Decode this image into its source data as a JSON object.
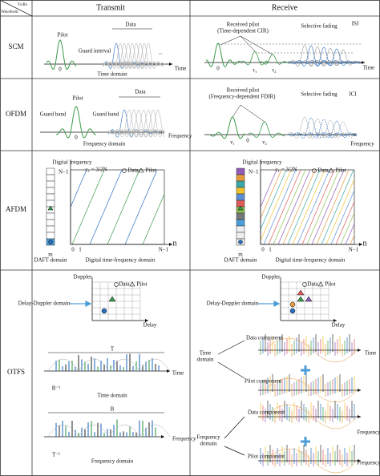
{
  "header": {
    "corner_top": "Tx/Rx",
    "corner_bottom": "Waveform",
    "transmit": "Transmit",
    "receive": "Receive"
  },
  "rows": [
    {
      "name": "SCM",
      "transmit": {
        "pilot": "Pilot",
        "data": "Data",
        "guard": "Guard interval",
        "zero": "0",
        "ellipsis": "...",
        "axis": "Time",
        "domain": "Time domain"
      },
      "receive": {
        "pilot": "Received pilot",
        "pilot_note": "(Time-dependent CIR)",
        "fading": "Selective fading",
        "interference": "ISI",
        "zero": "0",
        "tau1": "τ₁",
        "tau2": "τ₂",
        "axis": "Time"
      }
    },
    {
      "name": "OFDM",
      "transmit": {
        "pilot": "Pilot",
        "guard_left": "Guard band",
        "guard_right": "Guard band",
        "data": "Data",
        "zero": "0",
        "axis": "Frequency",
        "domain": "Frequency domain"
      },
      "receive": {
        "pilot": "Received pilot",
        "pilot_note": "(Frequency-dependent FDIR)",
        "fading": "Selective fading",
        "interference": "ICI",
        "zero": "0",
        "nu1": "ν₁",
        "nu2": "ν₂",
        "axis": "Frequency"
      }
    },
    {
      "name": "AFDM",
      "transmit": {
        "y_axis": "Digital frequency",
        "chirp": "c₁ = 3/2N",
        "legend_data": "Data",
        "legend_pilot": "Pilot",
        "top": "N−1",
        "m": "m",
        "n": "n",
        "zero": "0",
        "one": "1",
        "n_end": "N−1",
        "daft": "DAFT domain",
        "domain": "Digital time-frequency domain"
      },
      "receive": {
        "y_axis": "Digital frequency",
        "chirp": "c₁ = 3/2N",
        "legend_data": "Data",
        "legend_pilot": "Pilot",
        "top": "N−1",
        "m": "m",
        "n": "n",
        "zero": "0",
        "one": "1",
        "n_end": "N−1",
        "daft": "DAFT domain",
        "domain": "Digital time-frequency domain"
      }
    },
    {
      "name": "OTFS",
      "transmit": {
        "doppler": "Doppler",
        "delay": "Delay",
        "dd_domain": "Delay-Doppler domain",
        "legend_data": "Data",
        "legend_pilot": "Pilot",
        "period": "T",
        "time_axis": "Time",
        "time_res": "B⁻¹",
        "time_domain": "Time domain",
        "bandwidth": "B",
        "freq_axis": "Frequency",
        "freq_res": "T⁻¹",
        "freq_domain": "Frequency domain"
      },
      "receive": {
        "doppler": "Doppler",
        "delay": "Delay",
        "dd_domain": "Delay-Doppler domain",
        "legend_data": "Data",
        "legend_pilot": "Pilot",
        "time_label_1": "Time",
        "time_label_2": "domain",
        "time_data": "Data component",
        "time_pilot": "Pilot component",
        "time_axis": "Time",
        "freq_label_1": "Frequency",
        "freq_label_2": "domain",
        "freq_data": "Data component",
        "freq_pilot": "Pilot component",
        "freq_axis": "Frequency"
      }
    }
  ]
}
